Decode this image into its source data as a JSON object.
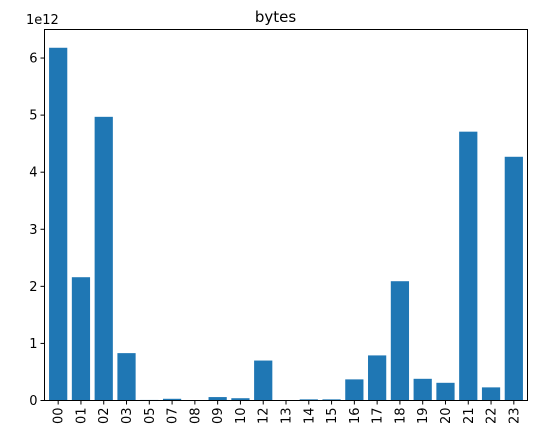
{
  "chart_data": {
    "type": "bar",
    "title": "bytes",
    "xlabel": "",
    "ylabel": "",
    "scale_label": "1e12",
    "y_multiplier": 1000000000000.0,
    "ylim": [
      0,
      6.5
    ],
    "yticks": [
      0,
      1,
      2,
      3,
      4,
      5,
      6
    ],
    "ytick_labels": [
      "0",
      "1",
      "2",
      "3",
      "4",
      "5",
      "6"
    ],
    "grid": false,
    "categories": [
      "00",
      "01",
      "02",
      "03",
      "05",
      "07",
      "08",
      "09",
      "10",
      "12",
      "13",
      "14",
      "15",
      "16",
      "17",
      "18",
      "19",
      "20",
      "21",
      "22",
      "23"
    ],
    "values": [
      6.18,
      2.16,
      4.97,
      0.83,
      0.01,
      0.03,
      0.0,
      0.06,
      0.04,
      0.7,
      0.0,
      0.02,
      0.02,
      0.37,
      0.79,
      2.09,
      0.38,
      0.31,
      4.71,
      0.23,
      4.27
    ],
    "colors": {
      "bar": "#1f77b4",
      "axis": "#000000",
      "background": "#ffffff"
    }
  }
}
